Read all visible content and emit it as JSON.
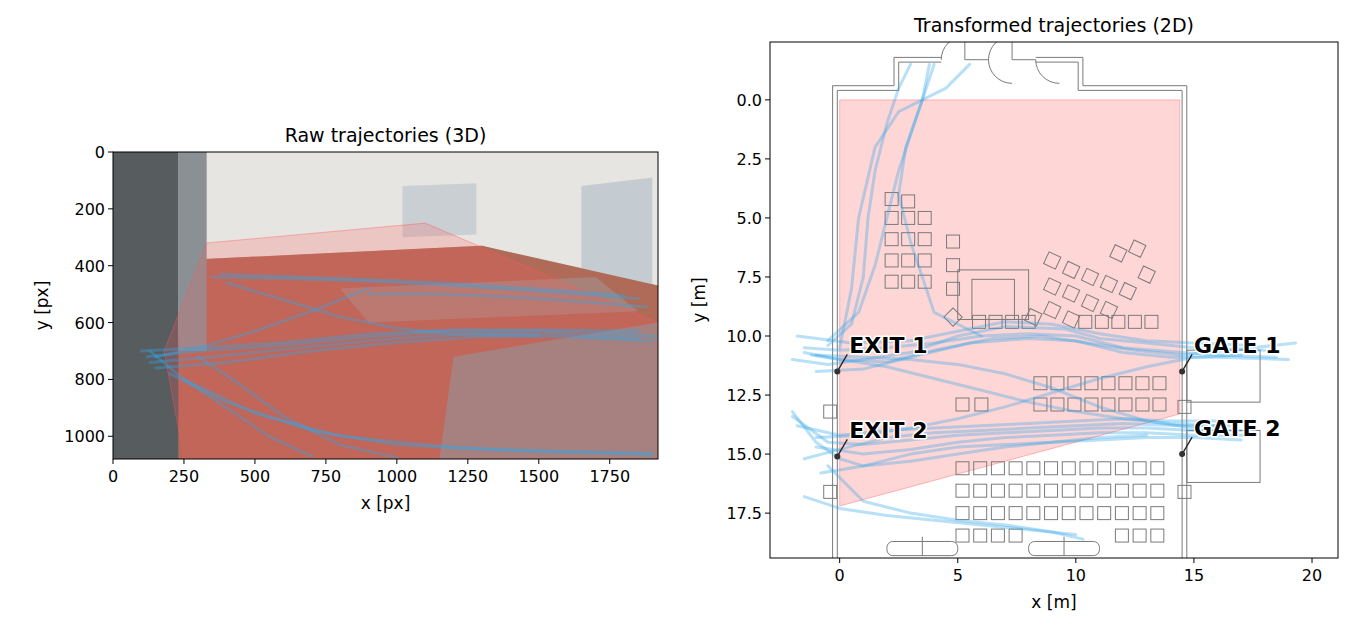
{
  "chart_data": [
    {
      "type": "line",
      "title": "Raw trajectories (3D)",
      "x_label": "x [px]",
      "y_label": "y [px]",
      "xlim": [
        0,
        1920
      ],
      "ylim": [
        1080,
        0
      ],
      "xticks": [
        0,
        250,
        500,
        750,
        1000,
        1250,
        1500,
        1750
      ],
      "yticks": [
        0,
        200,
        400,
        600,
        800,
        1000
      ],
      "color": "#35a7e8",
      "region": {
        "x": [
          330,
          1100,
          1920,
          1920,
          250,
          180
        ],
        "y": [
          320,
          250,
          600,
          1080,
          1080,
          700
        ],
        "color": "#ff5a5a"
      },
      "series": [
        {
          "x": [
            350,
            600,
            900,
            1200,
            1500,
            1850
          ],
          "values": [
            440,
            445,
            455,
            470,
            490,
            515
          ]
        },
        {
          "x": [
            380,
            650,
            950,
            1250,
            1550,
            1800
          ],
          "values": [
            430,
            440,
            450,
            465,
            485,
            505
          ]
        },
        {
          "x": [
            900,
            1100,
            1300,
            1500,
            1700,
            1880
          ],
          "values": [
            500,
            500,
            505,
            515,
            530,
            545
          ]
        },
        {
          "x": [
            120,
            300,
            600,
            900,
            1200,
            1500,
            1800,
            1920
          ],
          "values": [
            720,
            700,
            680,
            650,
            630,
            630,
            640,
            650
          ]
        },
        {
          "x": [
            130,
            350,
            650,
            950,
            1250,
            1550,
            1850
          ],
          "values": [
            740,
            720,
            690,
            660,
            640,
            640,
            655
          ]
        },
        {
          "x": [
            150,
            400,
            700,
            1000,
            1300,
            1600,
            1900
          ],
          "values": [
            760,
            740,
            700,
            670,
            650,
            650,
            665
          ]
        },
        {
          "x": [
            100,
            300,
            600,
            900,
            1200,
            1500,
            1850
          ],
          "values": [
            700,
            690,
            670,
            640,
            625,
            625,
            630
          ]
        },
        {
          "x": [
            200,
            400,
            700,
            1000,
            1400,
            1900
          ],
          "values": [
            780,
            880,
            980,
            1030,
            1050,
            1060
          ]
        },
        {
          "x": [
            250,
            500,
            800,
            1200,
            1600,
            1900
          ],
          "values": [
            800,
            920,
            1000,
            1040,
            1055,
            1065
          ]
        },
        {
          "x": [
            130,
            250,
            400,
            550,
            700
          ],
          "values": [
            700,
            800,
            900,
            1000,
            1070
          ]
        },
        {
          "x": [
            300,
            450,
            600,
            800,
            1000
          ],
          "values": [
            720,
            820,
            930,
            1030,
            1075
          ]
        },
        {
          "x": [
            400,
            600,
            800,
            1000,
            1200,
            1500
          ],
          "values": [
            460,
            520,
            580,
            620,
            640,
            645
          ]
        },
        {
          "x": [
            900,
            700,
            500,
            300,
            150
          ],
          "values": [
            480,
            560,
            630,
            690,
            720
          ]
        }
      ]
    },
    {
      "type": "line",
      "title": "Transformed trajectories (2D)",
      "x_label": "x [m]",
      "y_label": "y [m]",
      "xlim": [
        -2.95,
        21.1
      ],
      "ylim": [
        19.4,
        -2.45
      ],
      "xticks": [
        0,
        5,
        10,
        15,
        20
      ],
      "yticks": [
        {
          "value": 0,
          "label": "0.0"
        },
        {
          "value": 2.5,
          "label": "2.5"
        },
        {
          "value": 5,
          "label": "5.0"
        },
        {
          "value": 7.5,
          "label": "7.5"
        },
        {
          "value": 10,
          "label": "10.0"
        },
        {
          "value": 12.5,
          "label": "12.5"
        },
        {
          "value": 15,
          "label": "15.0"
        },
        {
          "value": 17.5,
          "label": "17.5"
        }
      ],
      "color": "#35a7e8",
      "region": {
        "x": [
          0,
          14.4,
          14.4,
          0
        ],
        "y": [
          0,
          0,
          13.3,
          17.2
        ],
        "color": "#ff5a5a"
      },
      "annotations": [
        {
          "text": "EXIT 1",
          "x": -0.1,
          "y": 11.5
        },
        {
          "text": "EXIT 2",
          "x": -0.1,
          "y": 15.1
        },
        {
          "text": "GATE 1",
          "x": 14.5,
          "y": 11.5
        },
        {
          "text": "GATE 2",
          "x": 14.5,
          "y": 15.0
        }
      ],
      "series": [
        {
          "x": [
            18.5,
            16,
            14.5,
            12,
            10,
            8,
            6,
            4,
            2,
            0,
            -1.5
          ],
          "values": [
            10.9,
            10.8,
            10.7,
            10.5,
            10.0,
            9.9,
            10.0,
            10.3,
            10.5,
            10.6,
            10.5
          ]
        },
        {
          "x": [
            18,
            15,
            13,
            11,
            9.5,
            7,
            5,
            3,
            1,
            -0.5,
            -2
          ],
          "values": [
            10.6,
            10.5,
            10.3,
            10.1,
            9.7,
            9.6,
            10.0,
            10.7,
            11.0,
            11.2,
            11.0
          ]
        },
        {
          "x": [
            19,
            16,
            14,
            12,
            10,
            8,
            5.5,
            3,
            1,
            -1
          ],
          "values": [
            11.0,
            10.9,
            10.9,
            10.7,
            10.2,
            10.1,
            10.3,
            10.9,
            11.4,
            11.5
          ]
        },
        {
          "x": [
            17.5,
            15,
            13,
            11,
            9,
            7,
            5,
            3,
            0.5,
            -1.8
          ],
          "values": [
            10.4,
            10.3,
            10.2,
            9.9,
            9.5,
            9.4,
            9.8,
            10.2,
            10.3,
            10.0
          ]
        },
        {
          "x": [
            19.3,
            16.5,
            14.5,
            12.5,
            10.5,
            8.5,
            6.5,
            4,
            2,
            0,
            -1.2
          ],
          "values": [
            10.3,
            10.6,
            10.8,
            10.6,
            10.3,
            10.0,
            10.1,
            10.6,
            11.1,
            11.0,
            10.8
          ]
        },
        {
          "x": [
            17,
            15,
            13,
            11,
            9,
            7,
            5,
            3,
            1,
            -0.5,
            -2
          ],
          "values": [
            14.0,
            14.0,
            13.9,
            13.9,
            14.0,
            14.1,
            14.2,
            14.4,
            14.6,
            14.5,
            13.4
          ]
        },
        {
          "x": [
            16.5,
            14.5,
            12,
            10,
            8,
            6,
            4,
            2,
            0,
            -1.5
          ],
          "values": [
            13.8,
            13.8,
            13.7,
            13.8,
            13.9,
            14.0,
            14.1,
            14.3,
            14.8,
            15.2
          ]
        },
        {
          "x": [
            17.5,
            15,
            13,
            11,
            9,
            7,
            5,
            3,
            1,
            -1
          ],
          "values": [
            14.2,
            14.2,
            14.1,
            14.1,
            14.2,
            14.3,
            14.5,
            14.8,
            15.0,
            14.7
          ]
        },
        {
          "x": [
            16,
            14,
            12,
            10,
            8,
            6,
            4,
            2,
            0,
            -1.8
          ],
          "values": [
            13.6,
            13.6,
            13.5,
            13.6,
            13.7,
            13.8,
            13.9,
            14.0,
            14.2,
            13.8
          ]
        },
        {
          "x": [
            17,
            15,
            13,
            11,
            9,
            7,
            5,
            3,
            1,
            -0.8
          ],
          "values": [
            14.4,
            14.3,
            14.3,
            14.4,
            14.5,
            14.6,
            14.7,
            15.0,
            15.5,
            15.8
          ]
        },
        {
          "x": [
            16,
            14,
            12,
            10,
            8,
            6,
            4,
            2,
            0,
            -1.5
          ],
          "values": [
            13.8,
            13.7,
            13.5,
            13.2,
            12.8,
            12.3,
            11.8,
            11.3,
            11.0,
            10.7
          ]
        },
        {
          "x": [
            17,
            15,
            13,
            11,
            9,
            7,
            5,
            3,
            1,
            -1
          ],
          "values": [
            10.8,
            10.9,
            11.3,
            11.8,
            12.4,
            13.0,
            13.5,
            13.9,
            14.2,
            14.3
          ]
        },
        {
          "x": [
            15,
            13,
            11,
            9,
            7,
            5,
            3,
            1,
            -1
          ],
          "values": [
            13.9,
            13.6,
            13.0,
            12.2,
            11.6,
            11.2,
            11.0,
            10.9,
            10.8
          ]
        },
        {
          "x": [
            -0.5,
            0.5,
            1.0,
            1.2,
            1.5,
            2.0,
            2.5,
            3.0
          ],
          "values": [
            10.4,
            9.5,
            7.5,
            5.0,
            3.0,
            1.0,
            -0.5,
            -1.5
          ]
        },
        {
          "x": [
            -0.5,
            0.8,
            1.5,
            2.0,
            2.5,
            3.0,
            3.5,
            3.8
          ],
          "values": [
            10.2,
            9.0,
            7.0,
            5.0,
            3.0,
            1.5,
            0.0,
            -1.5
          ]
        },
        {
          "x": [
            6,
            4,
            3,
            2.5,
            2.8,
            3.5,
            4.0
          ],
          "values": [
            10.0,
            9.0,
            6.0,
            4.0,
            2.0,
            0.0,
            -1.5
          ]
        },
        {
          "x": [
            0,
            0.5,
            0.8,
            1.5,
            2.5,
            4.5,
            5.5
          ],
          "values": [
            10.5,
            8,
            5.0,
            2.0,
            0.5,
            -0.5,
            -1.5
          ]
        },
        {
          "x": [
            -1.5,
            0,
            2,
            4,
            6,
            8,
            10
          ],
          "values": [
            16.8,
            17.3,
            17.6,
            17.8,
            18.0,
            18.2,
            18.4
          ]
        },
        {
          "x": [
            -0.5,
            1,
            3,
            5,
            7,
            9,
            10.3
          ],
          "values": [
            15.5,
            17.0,
            17.5,
            17.8,
            18.0,
            18.3,
            18.6
          ]
        },
        {
          "x": [
            -2,
            -1,
            0,
            1,
            3,
            5,
            7,
            9,
            11,
            13
          ],
          "values": [
            13.2,
            14.5,
            15.2,
            15.5,
            15.3,
            15.0,
            14.7,
            14.5,
            14.3,
            14.2
          ]
        }
      ]
    }
  ]
}
